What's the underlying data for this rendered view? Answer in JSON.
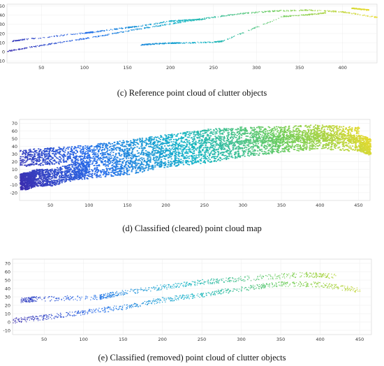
{
  "figure": {
    "panels": [
      {
        "id": "c",
        "caption": "(c) Reference point cloud of clutter objects"
      },
      {
        "id": "d",
        "caption": "(d) Classified (cleared) point cloud map"
      },
      {
        "id": "e",
        "caption": "(e) Classified (removed) point cloud of clutter objects"
      }
    ]
  },
  "chart_data": [
    {
      "type": "scatter",
      "title": "",
      "caption": "(c) Reference point cloud of clutter objects",
      "xlabel": "",
      "ylabel": "",
      "xlim": [
        10,
        440
      ],
      "ylim": [
        -12,
        52
      ],
      "xticks": [
        50,
        100,
        150,
        200,
        250,
        300,
        350,
        400
      ],
      "yticks": [
        -10,
        0,
        10,
        20,
        30,
        40,
        50
      ],
      "grid": true,
      "colormap": "parula (by height)",
      "series": [
        {
          "points": [
            [
              10,
              1
            ],
            [
              40,
              6
            ],
            [
              80,
              12
            ],
            [
              120,
              18
            ],
            [
              160,
              25
            ],
            [
              200,
              31
            ],
            [
              240,
              37
            ],
            [
              280,
              42
            ],
            [
              320,
              45
            ],
            [
              360,
              46
            ],
            [
              400,
              44
            ],
            [
              440,
              38
            ]
          ]
        },
        {
          "points": [
            [
              15,
              12
            ],
            [
              30,
              14
            ],
            [
              100,
              21
            ],
            [
              110,
              22
            ],
            [
              150,
              27
            ],
            [
              160,
              28
            ],
            [
              200,
              34
            ],
            [
              220,
              35
            ],
            [
              240,
              36
            ]
          ]
        },
        {
          "points": [
            [
              165,
              8
            ],
            [
              180,
              9
            ],
            [
              200,
              10
            ],
            [
              210,
              10
            ],
            [
              250,
              11
            ],
            [
              260,
              12
            ],
            [
              330,
              39
            ],
            [
              360,
              41
            ],
            [
              380,
              43
            ]
          ]
        },
        {
          "points": [
            [
              410,
              48
            ],
            [
              420,
              47
            ],
            [
              430,
              46
            ]
          ]
        }
      ]
    },
    {
      "type": "scatter",
      "title": "",
      "caption": "(d) Classified (cleared) point cloud map",
      "xlabel": "",
      "ylabel": "",
      "xlim": [
        10,
        465
      ],
      "ylim": [
        -30,
        75
      ],
      "xticks": [
        50,
        100,
        150,
        200,
        250,
        300,
        350,
        400,
        450
      ],
      "yticks": [
        -20,
        -10,
        0,
        10,
        20,
        30,
        40,
        50,
        60,
        70
      ],
      "grid": true,
      "colormap": "parula (by height)",
      "series": [
        {
          "points": [
            [
              10,
              -5
            ],
            [
              20,
              -4
            ],
            [
              30,
              0
            ],
            [
              50,
              0
            ],
            [
              80,
              8
            ],
            [
              100,
              10
            ],
            [
              150,
              15
            ],
            [
              200,
              25
            ],
            [
              250,
              30
            ],
            [
              300,
              38
            ],
            [
              350,
              44
            ],
            [
              400,
              48
            ],
            [
              450,
              45
            ],
            [
              465,
              40
            ]
          ]
        },
        {
          "points": [
            [
              10,
              25
            ],
            [
              50,
              28
            ],
            [
              100,
              32
            ],
            [
              150,
              38
            ],
            [
              200,
              45
            ],
            [
              250,
              52
            ],
            [
              300,
              55
            ],
            [
              350,
              56
            ],
            [
              400,
              58
            ],
            [
              450,
              55
            ]
          ]
        }
      ]
    },
    {
      "type": "scatter",
      "title": "",
      "caption": "(e) Classified (removed) point cloud of clutter objects",
      "xlabel": "",
      "ylabel": "",
      "xlim": [
        10,
        465
      ],
      "ylim": [
        -15,
        75
      ],
      "xticks": [
        50,
        100,
        150,
        200,
        250,
        300,
        350,
        400,
        450
      ],
      "yticks": [
        -10,
        0,
        10,
        20,
        30,
        40,
        50,
        60,
        70
      ],
      "grid": true,
      "colormap": "parula (by height)",
      "series": [
        {
          "points": [
            [
              10,
              2
            ],
            [
              50,
              6
            ],
            [
              100,
              12
            ],
            [
              150,
              18
            ],
            [
              200,
              27
            ],
            [
              250,
              33
            ],
            [
              300,
              40
            ],
            [
              350,
              46
            ],
            [
              400,
              45
            ],
            [
              450,
              38
            ]
          ]
        },
        {
          "points": [
            [
              20,
              26
            ],
            [
              40,
              28
            ],
            [
              120,
              30
            ],
            [
              140,
              34
            ],
            [
              200,
              42
            ],
            [
              250,
              48
            ],
            [
              300,
              52
            ],
            [
              380,
              57
            ],
            [
              420,
              55
            ]
          ]
        }
      ]
    }
  ]
}
